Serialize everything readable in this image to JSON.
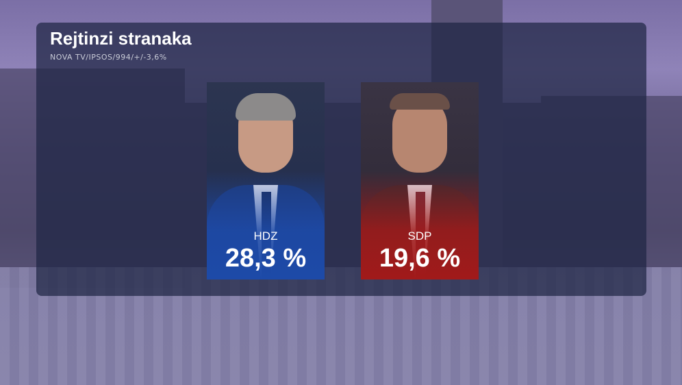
{
  "header": {
    "title": "Rejtinzi stranaka",
    "subtitle": "NOVA TV/IPSOS/994/+/-3,6%"
  },
  "chart_data": {
    "type": "bar",
    "title": "Rejtinzi stranaka",
    "subtitle": "NOVA TV/IPSOS/994/+/-3,6%",
    "categories": [
      "HDZ",
      "SDP"
    ],
    "values": [
      28.3,
      19.6
    ],
    "labels": [
      "28,3 %",
      "19,6 %"
    ],
    "colors": [
      "#1d4aa8",
      "#a11a1a"
    ]
  }
}
